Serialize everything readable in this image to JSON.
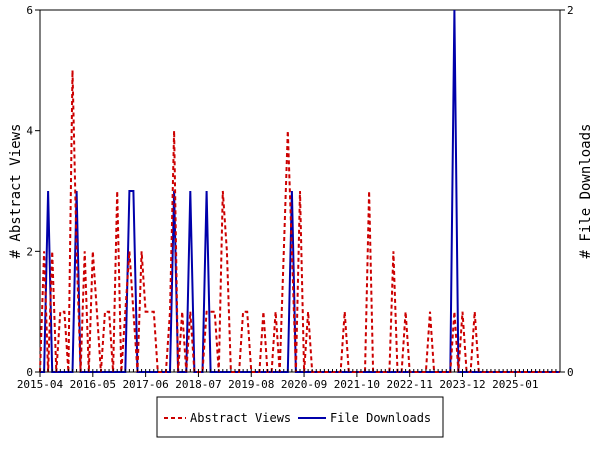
{
  "chart_data": {
    "type": "line",
    "title": "",
    "xlabel": "",
    "y_left_label": "# Abstract Views",
    "y_right_label": "# File Downloads",
    "x_tick_labels": [
      "2015-04",
      "2016-05",
      "2017-06",
      "2018-07",
      "2019-08",
      "2020-09",
      "2021-10",
      "2022-11",
      "2023-12",
      "2025-01"
    ],
    "y_left_ticks": [
      "0",
      "2",
      "4",
      "6"
    ],
    "y_right_ticks": [
      "0",
      "2"
    ],
    "y_left_range": [
      0,
      6
    ],
    "y_right_range": [
      0,
      2
    ],
    "x_range_months": [
      "2015-04",
      "2025-12"
    ],
    "grid": false,
    "legend_position": "bottom-center",
    "series": [
      {
        "name": "Abstract Views",
        "axis": "left",
        "color": "#cc0000",
        "style": "dashed",
        "values": [
          0,
          2,
          0,
          2,
          0,
          1,
          1,
          0,
          5,
          2,
          0,
          2,
          0,
          2,
          1,
          0,
          1,
          1,
          0,
          3,
          0,
          1,
          2,
          1,
          0,
          2,
          1,
          1,
          1,
          0,
          0,
          0,
          1,
          4,
          0,
          1,
          0,
          1,
          0,
          0,
          0,
          1,
          1,
          1,
          0,
          3,
          2,
          0,
          0,
          0,
          1,
          1,
          0,
          0,
          0,
          1,
          0,
          0,
          1,
          0,
          2,
          4,
          2,
          0,
          3,
          0,
          1,
          0,
          0,
          0,
          0,
          0,
          0,
          0,
          0,
          1,
          0,
          0,
          0,
          0,
          0,
          3,
          0,
          0,
          0,
          0,
          0,
          2,
          0,
          0,
          1,
          0,
          0,
          0,
          0,
          0,
          1,
          0,
          0,
          0,
          0,
          0,
          1,
          0,
          1,
          0,
          0,
          1,
          0,
          0,
          0,
          0,
          0,
          0,
          0,
          0,
          0,
          0,
          0,
          0,
          0,
          0,
          0,
          0,
          0,
          0,
          0,
          0,
          0
        ]
      },
      {
        "name": "File Downloads",
        "axis": "right",
        "color": "#0000aa",
        "style": "solid",
        "values": [
          0,
          0,
          1,
          0,
          0,
          0,
          0,
          0,
          0,
          1,
          0,
          0,
          0,
          0,
          0,
          0,
          0,
          0,
          0,
          0,
          0,
          0,
          1,
          1,
          0,
          0,
          0,
          0,
          0,
          0,
          0,
          0,
          0,
          1,
          0,
          0,
          0,
          1,
          0,
          0,
          0,
          1,
          0,
          0,
          0,
          0,
          0,
          0,
          0,
          0,
          0,
          0,
          0,
          0,
          0,
          0,
          0,
          0,
          0,
          0,
          0,
          0,
          1,
          0,
          0,
          0,
          0,
          0,
          0,
          0,
          0,
          0,
          0,
          0,
          0,
          0,
          0,
          0,
          0,
          0,
          0,
          0,
          0,
          0,
          0,
          0,
          0,
          0,
          0,
          0,
          0,
          0,
          0,
          0,
          0,
          0,
          0,
          0,
          0,
          0,
          0,
          0,
          2,
          0,
          0,
          0,
          0,
          0,
          0,
          0,
          0,
          0,
          0,
          0,
          0,
          0,
          0,
          0,
          0,
          0,
          0,
          0,
          0,
          0,
          0,
          0,
          0,
          0,
          0
        ]
      }
    ]
  }
}
